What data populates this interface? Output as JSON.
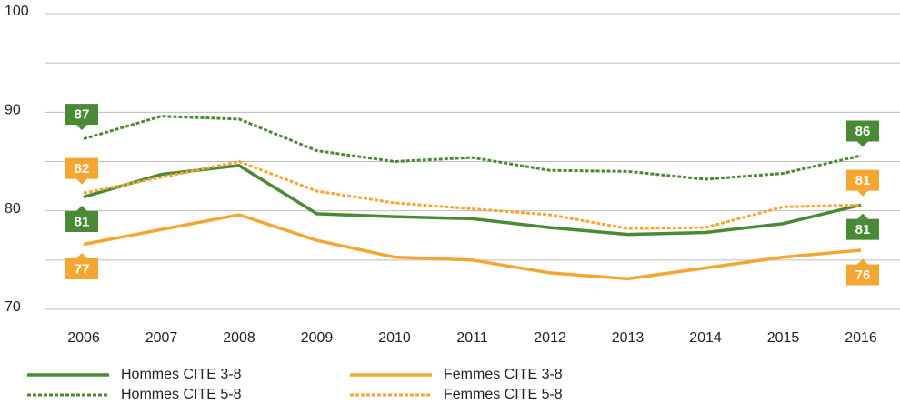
{
  "chart_data": {
    "type": "line",
    "categories": [
      "2006",
      "2007",
      "2008",
      "2009",
      "2010",
      "2011",
      "2012",
      "2013",
      "2014",
      "2015",
      "2016"
    ],
    "series": [
      {
        "name": "Hommes CITE 3-8",
        "color": "#4a8a35",
        "dashed": false,
        "values": [
          81.4,
          83.7,
          84.6,
          79.7,
          79.4,
          79.2,
          78.3,
          77.6,
          77.8,
          78.7,
          80.6
        ],
        "value_labels": [
          "81",
          null,
          null,
          null,
          null,
          null,
          null,
          null,
          null,
          null,
          "81"
        ]
      },
      {
        "name": "Femmes CITE 3-8",
        "color": "#f5a631",
        "dashed": false,
        "values": [
          76.6,
          78.1,
          79.6,
          77.0,
          75.3,
          75.0,
          73.7,
          73.1,
          74.2,
          75.3,
          76.0
        ],
        "value_labels": [
          "77",
          null,
          null,
          null,
          null,
          null,
          null,
          null,
          null,
          null,
          "76"
        ]
      },
      {
        "name": "Hommes CITE 5-8",
        "color": "#4a8a35",
        "dashed": true,
        "values": [
          87.3,
          89.6,
          89.3,
          86.1,
          85.0,
          85.4,
          84.1,
          84.0,
          83.2,
          83.8,
          85.6
        ],
        "value_labels": [
          "87",
          null,
          null,
          null,
          null,
          null,
          null,
          null,
          null,
          null,
          "86"
        ]
      },
      {
        "name": "Femmes CITE 5-8",
        "color": "#f5a631",
        "dashed": true,
        "values": [
          81.8,
          83.4,
          85.0,
          82.0,
          80.8,
          80.2,
          79.6,
          78.2,
          78.3,
          80.4,
          80.6
        ],
        "value_labels": [
          "82",
          null,
          null,
          null,
          null,
          null,
          null,
          null,
          null,
          null,
          "81"
        ]
      }
    ],
    "ylim": [
      70,
      100
    ],
    "yticks": [
      70,
      80,
      90,
      100
    ],
    "grid_lines": [
      70,
      75,
      80,
      85,
      90,
      95,
      100
    ],
    "legend": "bottom-left"
  }
}
